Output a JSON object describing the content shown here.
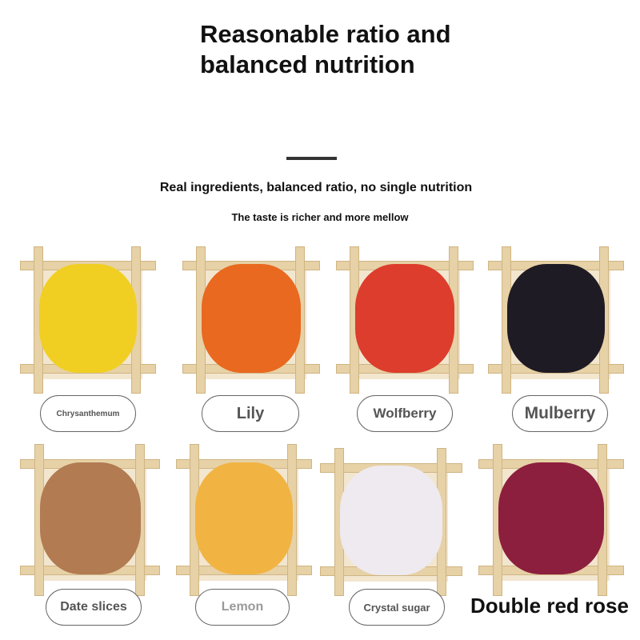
{
  "header": {
    "title": "Reasonable ratio and balanced nutrition",
    "subtitle": "Real ingredients, balanced ratio, no single nutrition",
    "tagline": "The taste is richer and more mellow"
  },
  "ingredients": [
    {
      "label": "Chrysanthemum",
      "color": "#f0cf22"
    },
    {
      "label": "Lily",
      "color": "#e8691f"
    },
    {
      "label": "Wolfberry",
      "color": "#dd3d2c"
    },
    {
      "label": "Mulberry",
      "color": "#1f1b24"
    },
    {
      "label": "Date slices",
      "color": "#b27b52"
    },
    {
      "label": "Lemon",
      "color": "#f1b443"
    },
    {
      "label": "Crystal sugar",
      "color": "#eeeaf0"
    },
    {
      "label": "Double red rose",
      "color": "#8c1f3e"
    }
  ]
}
